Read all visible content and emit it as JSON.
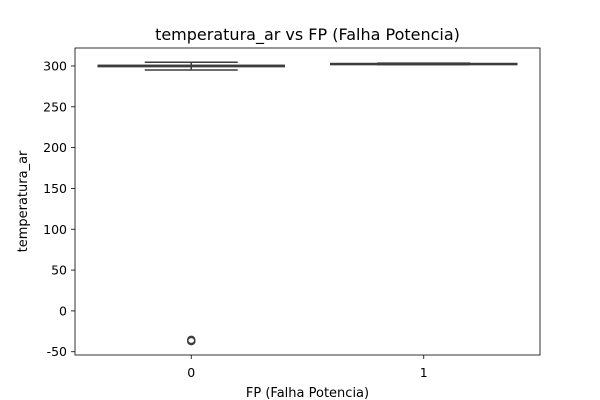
{
  "chart_data": {
    "type": "boxplot",
    "title": "temperatura_ar vs FP (Falha Potencia)",
    "xlabel": "FP (Falha Potencia)",
    "ylabel": "temperatura_ar",
    "categories": [
      "0",
      "1"
    ],
    "ylim": [
      -54,
      322
    ],
    "yticks": [
      -50,
      0,
      50,
      100,
      150,
      200,
      250,
      300
    ],
    "grid": false,
    "colors": {
      "box": "#ffffff",
      "line": "#3d3d3d",
      "outlier": "#3d3d3d"
    },
    "boxes": [
      {
        "category": "0",
        "whisker_low": 295.0,
        "q1": 299.2,
        "median": 300.0,
        "q3": 300.8,
        "whisker_high": 304.5,
        "outliers": [
          -35.5,
          -36.5,
          -37.0
        ]
      },
      {
        "category": "1",
        "whisker_low": 301.6,
        "q1": 302.3,
        "median": 302.6,
        "q3": 302.9,
        "whisker_high": 303.4,
        "outliers": []
      }
    ]
  }
}
